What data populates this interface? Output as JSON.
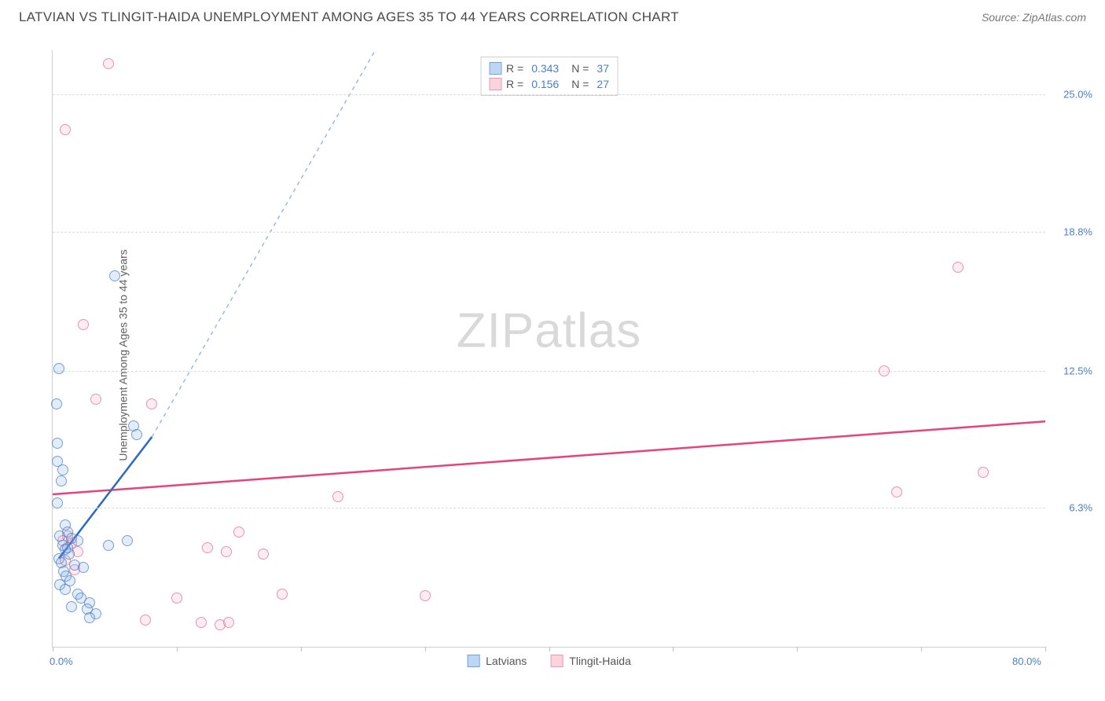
{
  "header": {
    "title": "LATVIAN VS TLINGIT-HAIDA UNEMPLOYMENT AMONG AGES 35 TO 44 YEARS CORRELATION CHART",
    "source": "Source: ZipAtlas.com"
  },
  "watermark": {
    "part1": "ZIP",
    "part2": "atlas"
  },
  "chart": {
    "type": "scatter",
    "ylabel": "Unemployment Among Ages 35 to 44 years",
    "xlim": [
      0,
      80
    ],
    "ylim": [
      0,
      27
    ],
    "x_axis_labels": [
      {
        "pos": 0,
        "label": "0.0%"
      },
      {
        "pos": 80,
        "label": "80.0%"
      }
    ],
    "x_ticks": [
      0,
      10,
      20,
      30,
      40,
      50,
      60,
      70,
      80
    ],
    "y_axis_labels": [
      {
        "pos": 6.3,
        "label": "6.3%"
      },
      {
        "pos": 12.5,
        "label": "12.5%"
      },
      {
        "pos": 18.8,
        "label": "18.8%"
      },
      {
        "pos": 25.0,
        "label": "25.0%"
      }
    ],
    "y_gridlines": [
      6.3,
      12.5,
      18.8,
      25.0
    ],
    "background_color": "#ffffff",
    "grid_color": "#dcdcdc",
    "grid_dash": true,
    "marker_radius": 7,
    "marker_fill_opacity": 0.25,
    "marker_stroke_opacity": 0.7,
    "series": [
      {
        "name": "Latvians",
        "fill_color": "#6ba3e8",
        "stroke_color": "#4a7fc9",
        "swatch_fill": "#bdd6f4",
        "swatch_stroke": "#6ba3e8",
        "line_color": "#2d6ac4",
        "line_dash_color": "#9bb9e2",
        "R": "0.343",
        "N": "37",
        "trend": {
          "x1": 0.5,
          "y1": 4.0,
          "x2": 8.0,
          "y2": 9.5,
          "dash_to_x": 26,
          "dash_to_y": 27
        },
        "points": [
          {
            "x": 0.5,
            "y": 12.6
          },
          {
            "x": 0.3,
            "y": 11.0
          },
          {
            "x": 0.4,
            "y": 9.2
          },
          {
            "x": 0.4,
            "y": 8.4
          },
          {
            "x": 0.8,
            "y": 8.0
          },
          {
            "x": 0.7,
            "y": 7.5
          },
          {
            "x": 5.0,
            "y": 16.8
          },
          {
            "x": 6.5,
            "y": 10.0
          },
          {
            "x": 6.8,
            "y": 9.6
          },
          {
            "x": 1.0,
            "y": 5.5
          },
          {
            "x": 1.2,
            "y": 5.2
          },
          {
            "x": 0.6,
            "y": 5.0
          },
          {
            "x": 1.5,
            "y": 4.9
          },
          {
            "x": 2.0,
            "y": 4.8
          },
          {
            "x": 0.8,
            "y": 4.6
          },
          {
            "x": 1.0,
            "y": 4.4
          },
          {
            "x": 1.3,
            "y": 4.2
          },
          {
            "x": 0.5,
            "y": 4.0
          },
          {
            "x": 0.7,
            "y": 3.8
          },
          {
            "x": 1.8,
            "y": 3.7
          },
          {
            "x": 2.5,
            "y": 3.6
          },
          {
            "x": 0.9,
            "y": 3.4
          },
          {
            "x": 1.1,
            "y": 3.2
          },
          {
            "x": 1.4,
            "y": 3.0
          },
          {
            "x": 0.6,
            "y": 2.8
          },
          {
            "x": 1.0,
            "y": 2.6
          },
          {
            "x": 6.0,
            "y": 4.8
          },
          {
            "x": 2.0,
            "y": 2.4
          },
          {
            "x": 2.3,
            "y": 2.2
          },
          {
            "x": 3.0,
            "y": 2.0
          },
          {
            "x": 1.5,
            "y": 1.8
          },
          {
            "x": 2.8,
            "y": 1.7
          },
          {
            "x": 3.5,
            "y": 1.5
          },
          {
            "x": 3.0,
            "y": 1.3
          },
          {
            "x": 4.5,
            "y": 4.6
          },
          {
            "x": 1.2,
            "y": 4.5
          },
          {
            "x": 0.4,
            "y": 6.5
          }
        ]
      },
      {
        "name": "Tlingit-Haida",
        "fill_color": "#f4a5bc",
        "stroke_color": "#e56f93",
        "swatch_fill": "#fad3de",
        "swatch_stroke": "#f097b2",
        "line_color": "#e84378",
        "R": "0.156",
        "N": "27",
        "trend": {
          "x1": 0,
          "y1": 6.9,
          "x2": 80,
          "y2": 10.2
        },
        "points": [
          {
            "x": 4.5,
            "y": 26.4
          },
          {
            "x": 1.0,
            "y": 23.4
          },
          {
            "x": 73,
            "y": 17.2
          },
          {
            "x": 2.5,
            "y": 14.6
          },
          {
            "x": 67,
            "y": 12.5
          },
          {
            "x": 3.5,
            "y": 11.2
          },
          {
            "x": 8.0,
            "y": 11.0
          },
          {
            "x": 75,
            "y": 7.9
          },
          {
            "x": 68,
            "y": 7.0
          },
          {
            "x": 23,
            "y": 6.8
          },
          {
            "x": 15,
            "y": 5.2
          },
          {
            "x": 12.5,
            "y": 4.5
          },
          {
            "x": 14,
            "y": 4.3
          },
          {
            "x": 17,
            "y": 4.2
          },
          {
            "x": 1.2,
            "y": 5.0
          },
          {
            "x": 1.5,
            "y": 4.7
          },
          {
            "x": 2.0,
            "y": 4.3
          },
          {
            "x": 10,
            "y": 2.2
          },
          {
            "x": 7.5,
            "y": 1.2
          },
          {
            "x": 12,
            "y": 1.1
          },
          {
            "x": 13.5,
            "y": 1.0
          },
          {
            "x": 14.2,
            "y": 1.1
          },
          {
            "x": 18.5,
            "y": 2.4
          },
          {
            "x": 30,
            "y": 2.3
          },
          {
            "x": 1.0,
            "y": 3.9
          },
          {
            "x": 1.8,
            "y": 3.5
          },
          {
            "x": 0.8,
            "y": 4.8
          }
        ]
      }
    ],
    "stat_legend": {
      "rows": [
        {
          "series_idx": 0,
          "r_label": "R =",
          "n_label": "N ="
        },
        {
          "series_idx": 1,
          "r_label": "R =",
          "n_label": "N ="
        }
      ]
    },
    "bottom_legend": {
      "items": [
        {
          "series_idx": 0
        },
        {
          "series_idx": 1
        }
      ]
    }
  }
}
